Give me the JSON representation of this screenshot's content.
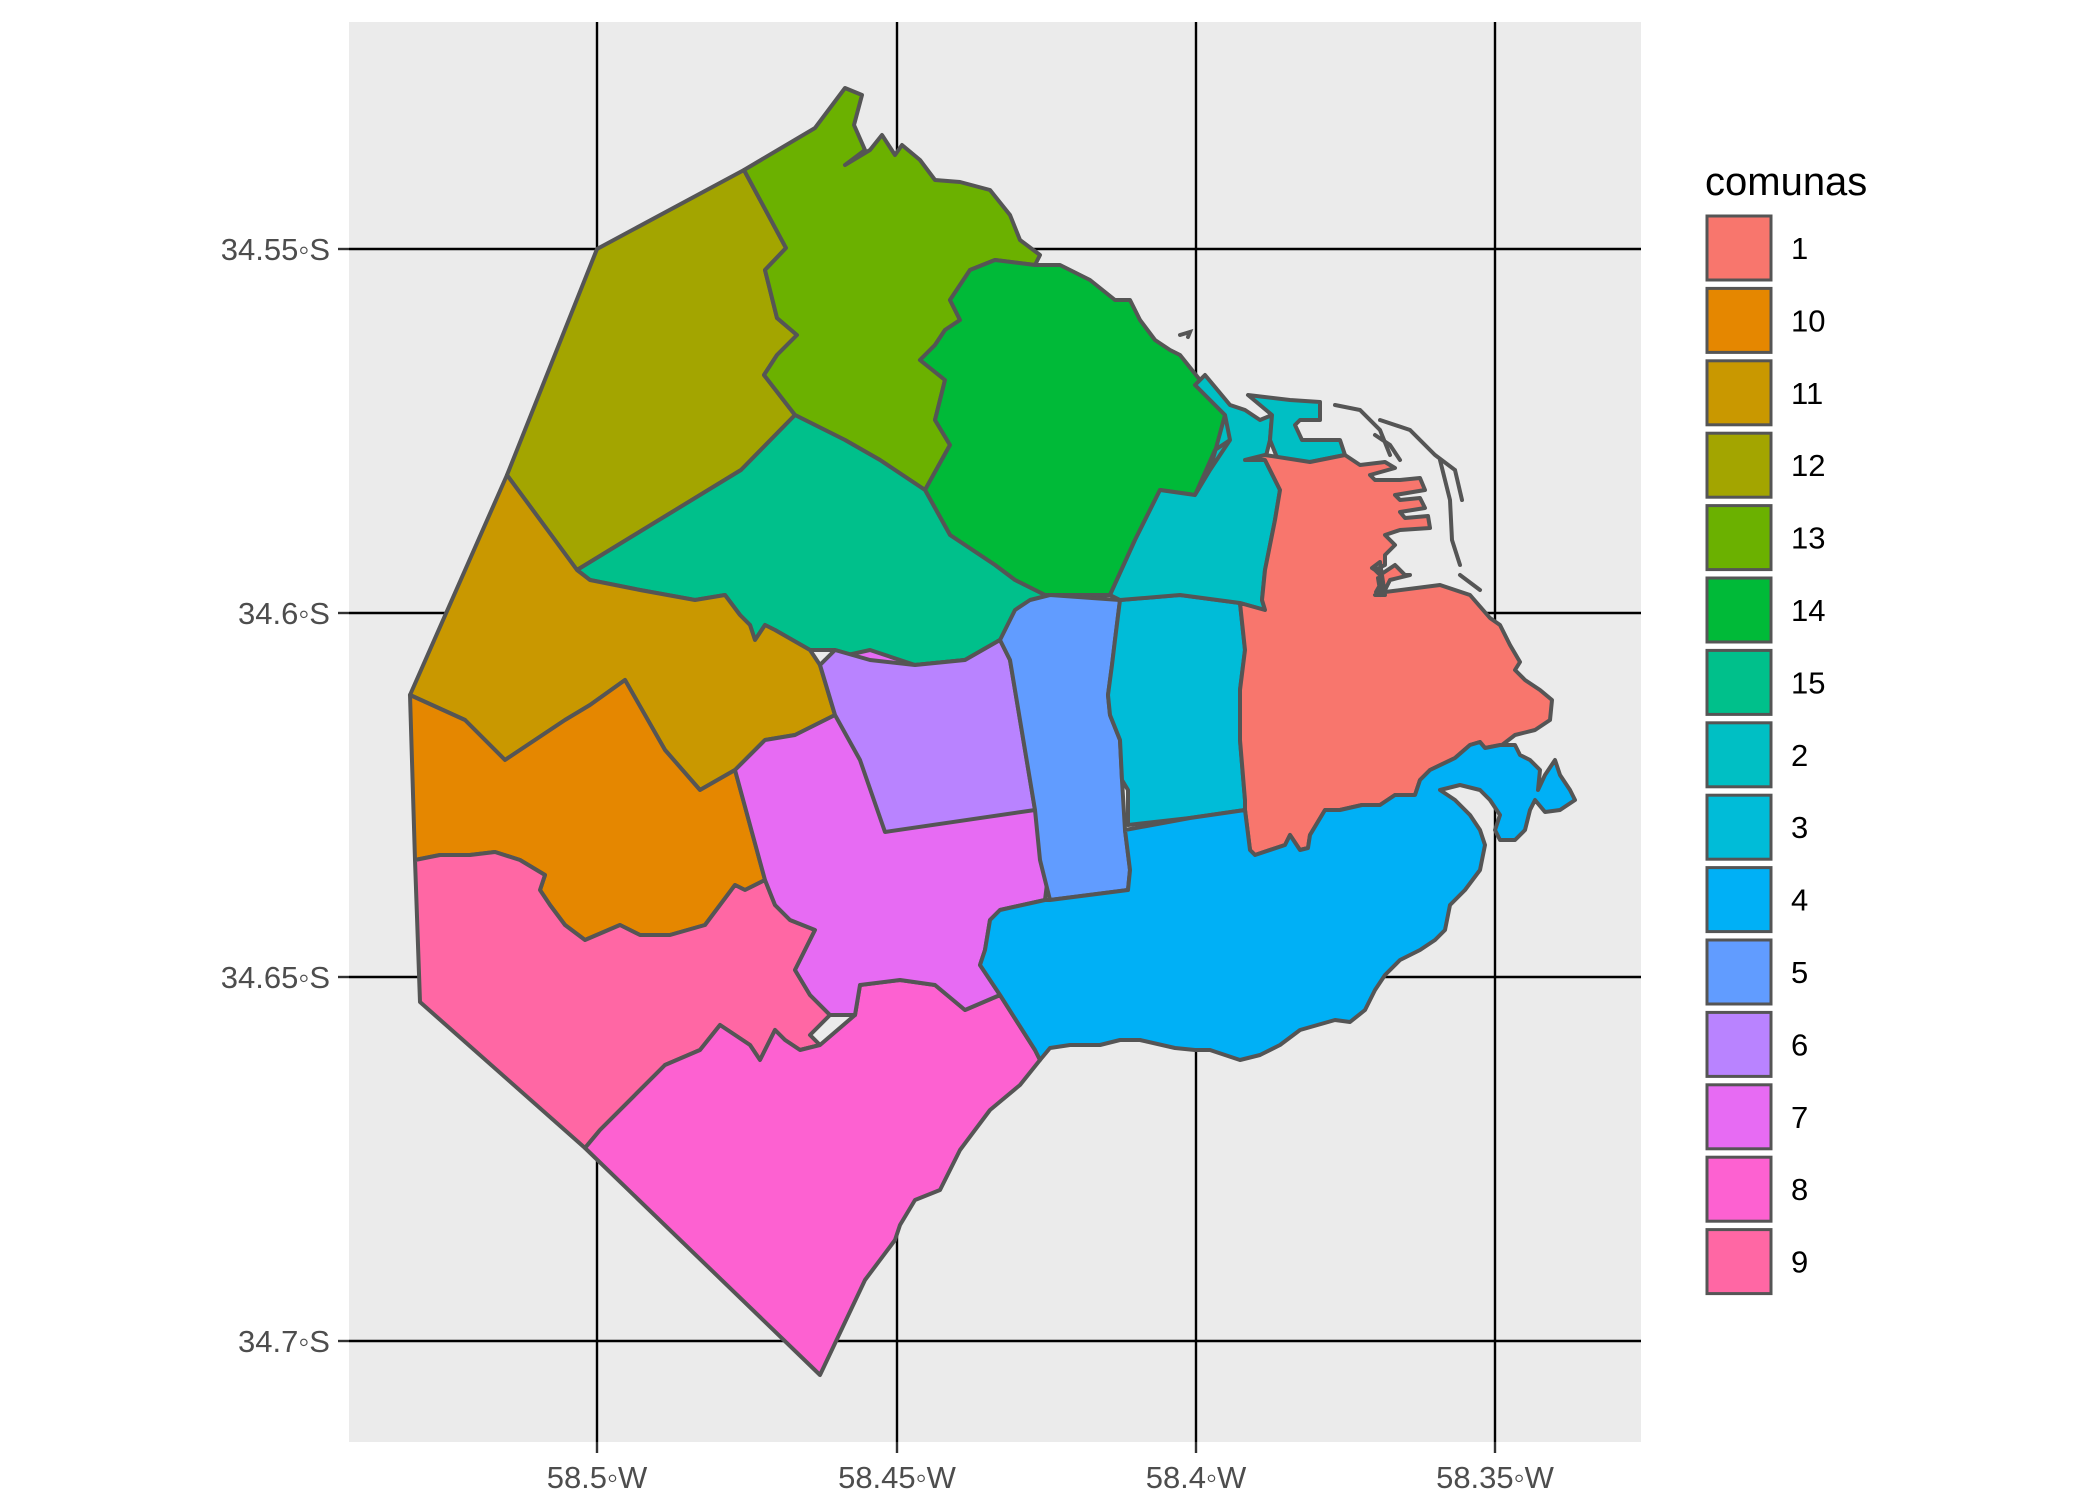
{
  "axes": {
    "x_ticks": [
      "58.5◦W",
      "58.45◦W",
      "58.4◦W",
      "58.35◦W"
    ],
    "y_ticks": [
      "34.55◦S",
      "34.6◦S",
      "34.65◦S",
      "34.7◦S"
    ]
  },
  "legend": {
    "title": "comunas",
    "items": [
      {
        "label": "1",
        "color": "#F8766D"
      },
      {
        "label": "10",
        "color": "#E58700"
      },
      {
        "label": "11",
        "color": "#C99800"
      },
      {
        "label": "12",
        "color": "#A3A500"
      },
      {
        "label": "13",
        "color": "#6BB100"
      },
      {
        "label": "14",
        "color": "#00BA38"
      },
      {
        "label": "15",
        "color": "#00C08B"
      },
      {
        "label": "2",
        "color": "#00BFC4"
      },
      {
        "label": "3",
        "color": "#00BCD8"
      },
      {
        "label": "4",
        "color": "#00B0F6"
      },
      {
        "label": "5",
        "color": "#619CFF"
      },
      {
        "label": "6",
        "color": "#B983FF"
      },
      {
        "label": "7",
        "color": "#E76BF3"
      },
      {
        "label": "8",
        "color": "#FD61D1"
      },
      {
        "label": "9",
        "color": "#FF67A4"
      }
    ]
  },
  "colors": {
    "panel_background": "#EBEBEB",
    "grid": "#000000",
    "border": "#555555"
  }
}
